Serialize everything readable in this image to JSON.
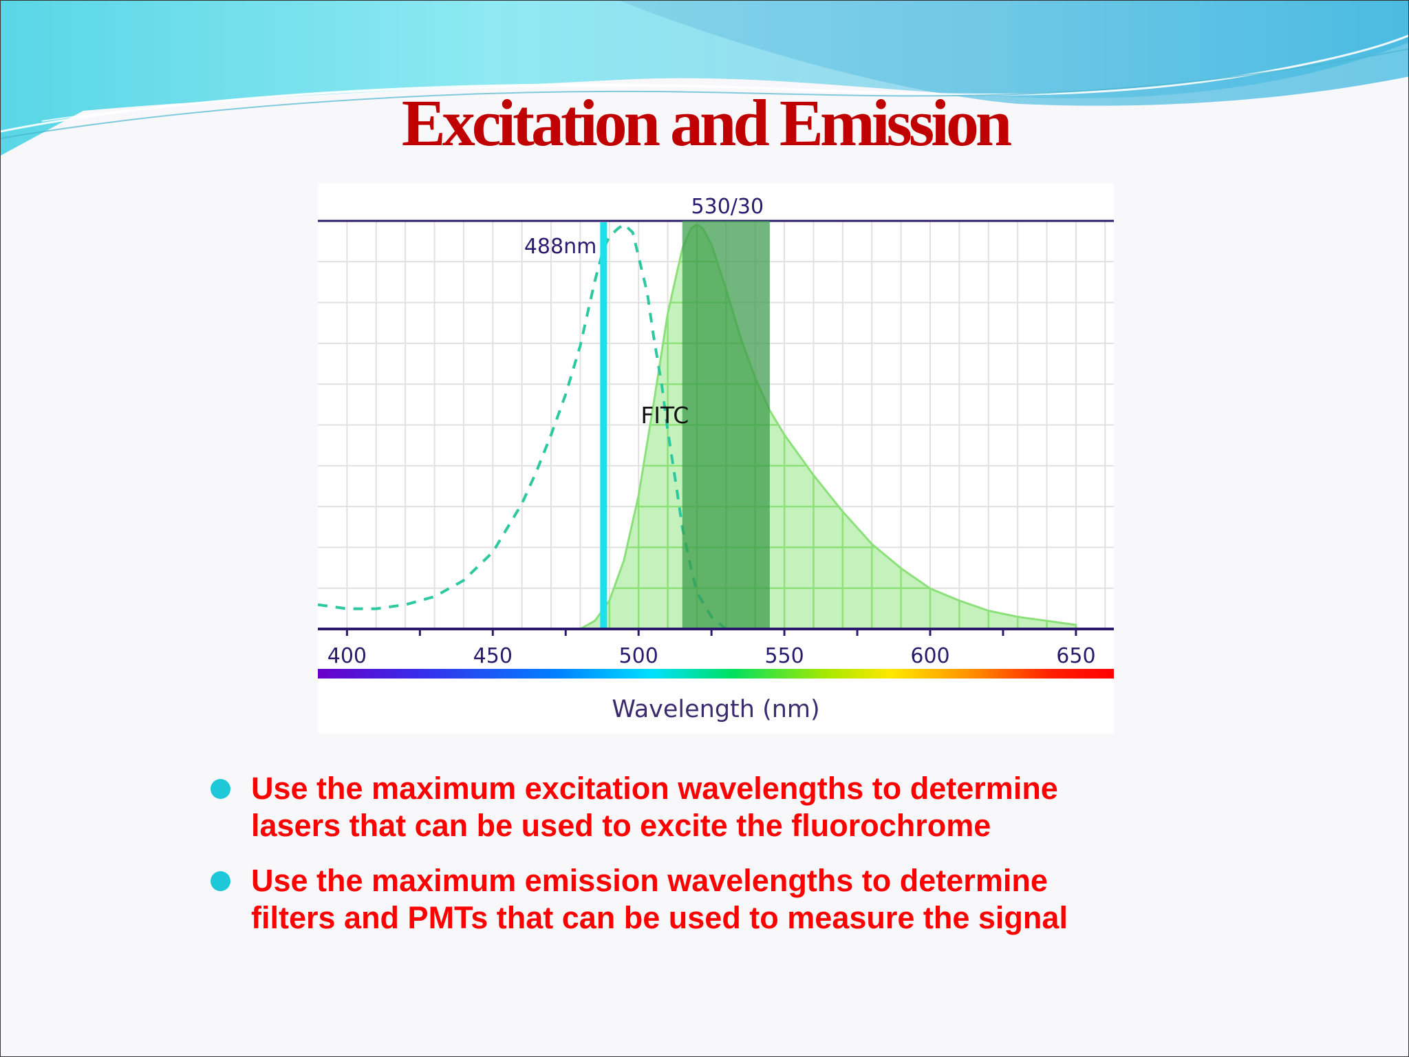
{
  "slide": {
    "title": "Excitation and Emission",
    "bullets": [
      {
        "line1": "Use the maximum excitation wavelengths to determine",
        "line2": "lasers that can be used to excite the fluorochrome"
      },
      {
        "line1": "Use the maximum emission wavelengths to determine",
        "line2": "filters and PMTs that can be used to measure the signal"
      }
    ],
    "colors": {
      "title": "#c00000",
      "bullet_text": "#ff0000",
      "bullet_marker": "#1ec8d8"
    }
  },
  "chart_data": {
    "type": "area",
    "title": "",
    "xlabel": "Wavelength (nm)",
    "ylabel": "",
    "xlim": [
      390,
      663
    ],
    "ylim": [
      0,
      1
    ],
    "x_ticks": [
      400,
      450,
      500,
      550,
      600,
      650
    ],
    "grid": true,
    "fluorochrome_label": "FITC",
    "laser": {
      "label": "488nm",
      "wavelength": 488,
      "color": "#1fe0ea"
    },
    "filter": {
      "label": "530/30",
      "center": 530,
      "bandwidth": 30,
      "color": "#3a9a4a"
    },
    "series": [
      {
        "kind": "excitation",
        "style": "dashed",
        "color": "#2ec8a0",
        "x": [
          390,
          400,
          410,
          420,
          430,
          440,
          450,
          460,
          465,
          470,
          475,
          480,
          485,
          488,
          490,
          493,
          495,
          498,
          500,
          503,
          505,
          508,
          510,
          513,
          515,
          518,
          520,
          525,
          530
        ],
        "y": [
          0.06,
          0.05,
          0.05,
          0.06,
          0.08,
          0.12,
          0.19,
          0.31,
          0.39,
          0.48,
          0.58,
          0.7,
          0.86,
          0.94,
          0.97,
          0.99,
          1.0,
          0.98,
          0.92,
          0.83,
          0.73,
          0.6,
          0.49,
          0.35,
          0.25,
          0.15,
          0.09,
          0.03,
          0.0
        ]
      },
      {
        "kind": "emission",
        "style": "filled",
        "color": "#7fe26a",
        "x": [
          480,
          485,
          490,
          495,
          500,
          505,
          510,
          515,
          518,
          520,
          522,
          525,
          530,
          535,
          540,
          545,
          550,
          560,
          570,
          580,
          590,
          600,
          610,
          620,
          630,
          640,
          650
        ],
        "y": [
          0.0,
          0.02,
          0.07,
          0.17,
          0.33,
          0.55,
          0.78,
          0.94,
          0.99,
          1.0,
          0.99,
          0.95,
          0.84,
          0.72,
          0.62,
          0.54,
          0.48,
          0.38,
          0.29,
          0.21,
          0.15,
          0.1,
          0.07,
          0.045,
          0.03,
          0.02,
          0.01
        ]
      }
    ]
  }
}
